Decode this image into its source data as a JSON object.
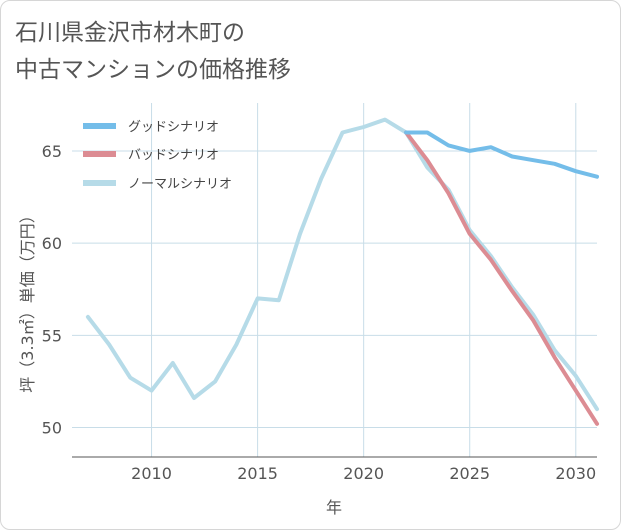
{
  "title_line1": "石川県金沢市材木町の",
  "title_line2": "中古マンションの価格推移",
  "chart_data": {
    "type": "line",
    "xlabel": "年",
    "ylabel": "坪（3.3㎡）単価（万円）",
    "xlim": [
      2006.25,
      2031
    ],
    "ylim": [
      48.4,
      67.6
    ],
    "x_ticks": [
      2010,
      2015,
      2020,
      2025,
      2030
    ],
    "y_ticks": [
      50,
      55,
      60,
      65
    ],
    "grid": true,
    "legend_position": "top-left",
    "series": [
      {
        "name": "グッドシナリオ",
        "color": "#74bde9",
        "x": [
          2022,
          2023,
          2024,
          2025,
          2026,
          2027,
          2028,
          2029,
          2030,
          2031
        ],
        "values": [
          66.0,
          66.0,
          65.3,
          65.0,
          65.2,
          64.7,
          64.5,
          64.3,
          63.9,
          63.6
        ]
      },
      {
        "name": "バッドシナリオ",
        "color": "#dc8c93",
        "x": [
          2022,
          2023,
          2024,
          2025,
          2026,
          2027,
          2028,
          2029,
          2030,
          2031
        ],
        "values": [
          66.0,
          64.5,
          62.7,
          60.5,
          59.1,
          57.4,
          55.8,
          53.8,
          52.0,
          50.2
        ]
      },
      {
        "name": "ノーマルシナリオ",
        "color": "#b6dbe8",
        "x": [
          2007,
          2008,
          2009,
          2010,
          2011,
          2012,
          2013,
          2014,
          2015,
          2016,
          2017,
          2018,
          2019,
          2020,
          2021,
          2022,
          2023,
          2024,
          2025,
          2026,
          2027,
          2028,
          2029,
          2030,
          2031
        ],
        "values": [
          56.0,
          54.5,
          52.7,
          52.0,
          53.5,
          51.6,
          52.5,
          54.5,
          57.0,
          56.9,
          60.5,
          63.5,
          66.0,
          66.3,
          66.7,
          66.0,
          64.1,
          62.9,
          60.7,
          59.3,
          57.6,
          56.1,
          54.2,
          52.8,
          51.0
        ]
      }
    ]
  }
}
